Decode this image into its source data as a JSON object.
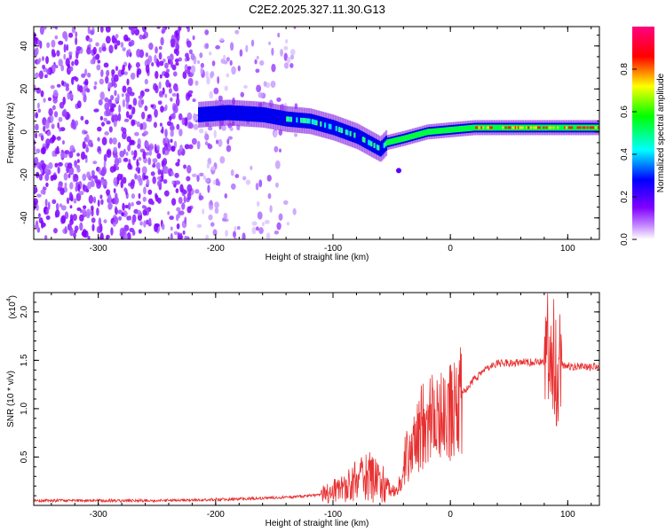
{
  "title": "C2E2.2025.327.11.30.G13",
  "chart_data": [
    {
      "type": "heatmap",
      "xlabel": "Height of straight line (km)",
      "ylabel": "Frequency (Hz)",
      "xlim": [
        -355,
        127
      ],
      "ylim": [
        -50,
        49
      ],
      "xticks": [
        -300,
        -200,
        -100,
        0,
        100
      ],
      "yticks": [
        -40,
        -20,
        0,
        20,
        40
      ],
      "colorbar": {
        "label": "Normalized spectral amplitude",
        "range": [
          0,
          1
        ],
        "ticks": [
          "0.0",
          "0.2",
          "0.4",
          "0.6",
          "0.8"
        ],
        "colors": [
          "#ffffff",
          "#8000ff",
          "#0000ff",
          "#00ffff",
          "#00ff00",
          "#ffff00",
          "#ff0000",
          "#ff0080"
        ]
      },
      "ridge": {
        "x": [
          -215,
          -190,
          -160,
          -140,
          -120,
          -100,
          -80,
          -60,
          -55,
          -40,
          -20,
          0,
          20,
          40,
          60,
          80,
          100,
          127
        ],
        "y": [
          8,
          9,
          8,
          6,
          5,
          2,
          -2,
          -8,
          -5,
          -3,
          0,
          1,
          2,
          2,
          2,
          2,
          2,
          2
        ]
      }
    },
    {
      "type": "line",
      "xlabel": "Height of straight line (km)",
      "ylabel": "SNR (10 * v/v)",
      "y_multiplier": "(x10",
      "y_multiplier_exp": "4",
      "xlim": [
        -355,
        127
      ],
      "ylim": [
        0,
        2.2
      ],
      "xticks": [
        -300,
        -200,
        -100,
        0,
        100
      ],
      "yticks": [
        "0.5",
        "1.0",
        "1.5",
        "2.0"
      ],
      "color": "#e83030",
      "series": [
        {
          "x": [
            -355,
            -300,
            -250,
            -200,
            -170,
            -150,
            -130,
            -110,
            -100,
            -90,
            -80,
            -70,
            -60,
            -55,
            -45,
            -40,
            -35,
            -30,
            -25,
            -20,
            -10,
            0,
            10,
            20,
            30,
            40,
            60,
            80,
            85,
            90,
            95,
            100,
            127
          ],
          "y": [
            0.05,
            0.05,
            0.05,
            0.06,
            0.07,
            0.08,
            0.09,
            0.11,
            0.14,
            0.18,
            0.25,
            0.3,
            0.28,
            0.2,
            0.15,
            0.45,
            0.55,
            0.7,
            0.8,
            0.85,
            0.9,
            1.0,
            1.15,
            1.3,
            1.4,
            1.47,
            1.48,
            1.48,
            1.5,
            1.5,
            1.45,
            1.44,
            1.43
          ]
        }
      ]
    }
  ]
}
